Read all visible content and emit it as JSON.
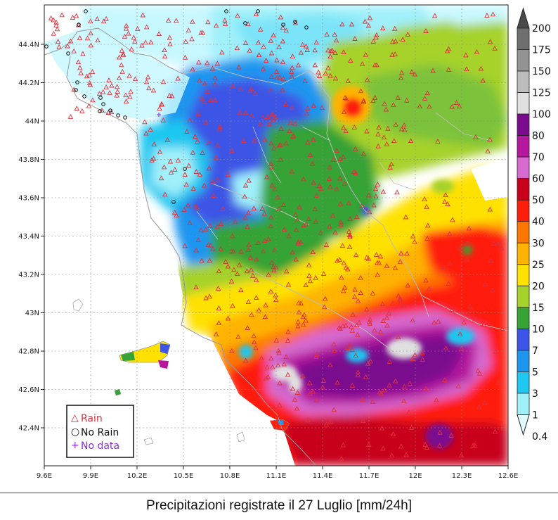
{
  "caption": "Precipitazioni registrate il 27 Luglio [mm/24h]",
  "axes": {
    "x_ticks": [
      "9.6E",
      "9.9E",
      "10.2E",
      "10.5E",
      "10.8E",
      "11.1E",
      "11.4E",
      "11.7E",
      "12E",
      "12.3E",
      "12.6E"
    ],
    "y_ticks": [
      "44.4N",
      "44.2N",
      "44N",
      "43.8N",
      "43.6N",
      "43.4N",
      "43.2N",
      "43N",
      "42.8N",
      "42.6N",
      "42.4N"
    ]
  },
  "colorbar": {
    "labels": [
      "200",
      "175",
      "150",
      "125",
      "100",
      "80",
      "70",
      "60",
      "50",
      "40",
      "30",
      "25",
      "20",
      "15",
      "10",
      "7",
      "5",
      "3",
      "1",
      "0.4"
    ],
    "colors": [
      "#4a4a4a",
      "#6e6e6e",
      "#939393",
      "#bcbcbc",
      "#e0e0e0",
      "#7a0a8e",
      "#b5179e",
      "#d66ad0",
      "#c8001a",
      "#ff1e0a",
      "#ff7700",
      "#ffb300",
      "#ffe100",
      "#a6d22c",
      "#35a336",
      "#3c55e6",
      "#1e96f0",
      "#1ec8f0",
      "#a0f0fa",
      "#e0fcff"
    ]
  },
  "legend": {
    "rain": "Rain",
    "no_rain": "No Rain",
    "no_data": "No data",
    "rain_symbol": "△",
    "no_rain_symbol": "○",
    "no_data_symbol": "+",
    "rain_color": "#e0303a",
    "no_rain_color": "#111111",
    "no_data_color": "#8a2be2"
  }
}
